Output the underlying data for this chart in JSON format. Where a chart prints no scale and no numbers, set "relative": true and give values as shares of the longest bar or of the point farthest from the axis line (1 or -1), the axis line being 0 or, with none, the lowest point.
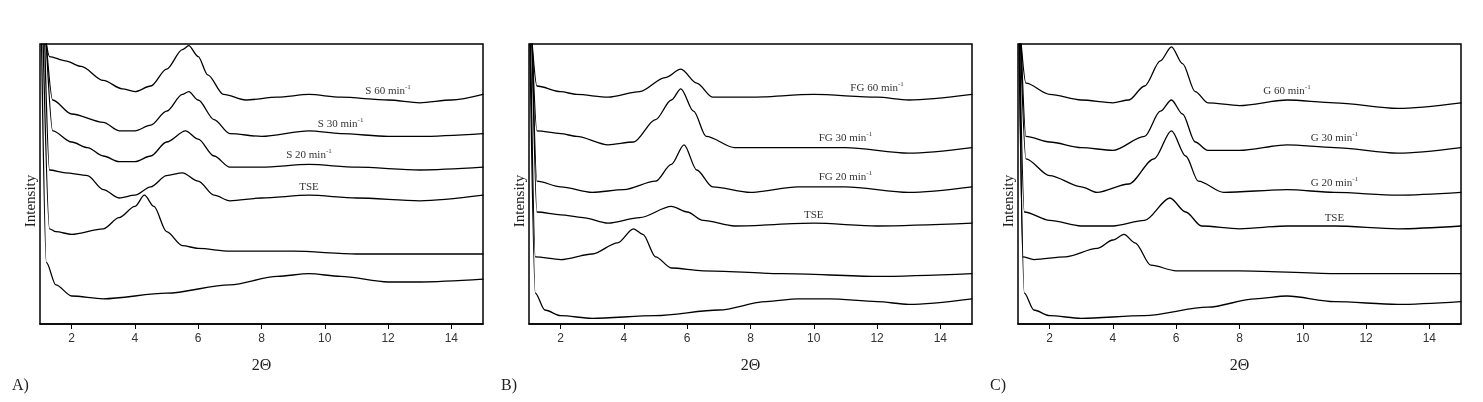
{
  "chart_data": [
    {
      "type": "line",
      "relative": true,
      "xlabel": "2Θ",
      "ylabel": "Intensity",
      "annotations": [
        "A)"
      ],
      "xlim": [
        1,
        15
      ],
      "xticks": [
        2,
        4,
        6,
        8,
        10,
        12,
        14
      ],
      "grid": false,
      "legend": false,
      "marker": "none",
      "line_style": "solid",
      "series": [
        {
          "name": "S 60 min$^{-1}$",
          "color": "#000000",
          "x": [
            1.2,
            1.3,
            1.8,
            2.3,
            3,
            3.6,
            4,
            4.5,
            5,
            5.5,
            5.7,
            6,
            6.3,
            6.8,
            7.5,
            8.5,
            9.5,
            10.5,
            12,
            13,
            14,
            15
          ],
          "values": [
            1.0,
            0.955,
            0.94,
            0.92,
            0.87,
            0.84,
            0.83,
            0.85,
            0.91,
            0.98,
            0.994,
            0.955,
            0.89,
            0.82,
            0.8,
            0.81,
            0.82,
            0.81,
            0.8,
            0.79,
            0.8,
            0.82
          ]
        },
        {
          "name": "S 30 min$^{-1}$",
          "color": "#000000",
          "x": [
            1.2,
            1.4,
            2,
            3,
            3.5,
            4,
            4.5,
            5,
            5.5,
            5.7,
            6,
            6.5,
            7,
            8,
            9.5,
            10.5,
            12,
            13,
            15
          ],
          "values": [
            1.0,
            0.8,
            0.75,
            0.72,
            0.69,
            0.69,
            0.71,
            0.76,
            0.82,
            0.83,
            0.8,
            0.73,
            0.68,
            0.67,
            0.69,
            0.68,
            0.67,
            0.67,
            0.68
          ]
        },
        {
          "name": "S 20 min$^{-1}$",
          "color": "#000000",
          "x": [
            1.2,
            1.4,
            2,
            2.5,
            3,
            3.5,
            4,
            4.5,
            5,
            5.6,
            6,
            6.5,
            7,
            8,
            9.5,
            11,
            13,
            15
          ],
          "values": [
            1.0,
            0.69,
            0.65,
            0.63,
            0.6,
            0.58,
            0.58,
            0.6,
            0.65,
            0.69,
            0.66,
            0.6,
            0.56,
            0.56,
            0.57,
            0.56,
            0.55,
            0.56
          ]
        },
        {
          "name": "TSE",
          "color": "#000000",
          "x": [
            1.15,
            1.3,
            1.8,
            2.5,
            3,
            3.5,
            4,
            4.5,
            5,
            5.5,
            6,
            6.5,
            7,
            8,
            9.5,
            11,
            13,
            15
          ],
          "values": [
            1.0,
            0.55,
            0.54,
            0.53,
            0.48,
            0.45,
            0.46,
            0.49,
            0.53,
            0.54,
            0.51,
            0.46,
            0.44,
            0.45,
            0.46,
            0.45,
            0.44,
            0.46
          ]
        },
        {
          "color": "#000000",
          "x": [
            1.1,
            1.3,
            1.5,
            2,
            3,
            3.5,
            4,
            4.3,
            4.6,
            5,
            5.5,
            6,
            7,
            9,
            11,
            15
          ],
          "values": [
            1.0,
            0.34,
            0.33,
            0.32,
            0.34,
            0.38,
            0.42,
            0.46,
            0.42,
            0.33,
            0.28,
            0.27,
            0.26,
            0.26,
            0.25,
            0.25
          ]
        },
        {
          "color": "#000000",
          "x": [
            1.05,
            1.2,
            1.5,
            2,
            3,
            5,
            7,
            8.5,
            9.5,
            10.5,
            12,
            13,
            15
          ],
          "values": [
            1.0,
            0.22,
            0.14,
            0.1,
            0.09,
            0.11,
            0.14,
            0.17,
            0.18,
            0.17,
            0.15,
            0.15,
            0.16
          ]
        }
      ]
    },
    {
      "type": "line",
      "relative": true,
      "xlabel": "2Θ",
      "ylabel": "Intensity",
      "annotations": [
        "B)"
      ],
      "xlim": [
        1,
        15
      ],
      "xticks": [
        2,
        4,
        6,
        8,
        10,
        12,
        14
      ],
      "grid": false,
      "legend": false,
      "marker": "none",
      "line_style": "solid",
      "series": [
        {
          "name": "FG 60 min$^{-1}$",
          "color": "#000000",
          "x": [
            1.1,
            1.25,
            2,
            2.5,
            3.5,
            4.5,
            5.3,
            5.8,
            6.3,
            6.8,
            8,
            10,
            12,
            13,
            15
          ],
          "values": [
            1.0,
            0.85,
            0.83,
            0.82,
            0.81,
            0.83,
            0.88,
            0.91,
            0.86,
            0.81,
            0.81,
            0.82,
            0.81,
            0.8,
            0.82
          ]
        },
        {
          "name": "FG 30 min$^{-1}$",
          "color": "#000000",
          "x": [
            1.1,
            1.25,
            2,
            2.5,
            3.5,
            4.3,
            5,
            5.5,
            5.8,
            6.2,
            6.6,
            7.5,
            9.5,
            11,
            13,
            15
          ],
          "values": [
            1.0,
            0.69,
            0.68,
            0.67,
            0.64,
            0.65,
            0.73,
            0.8,
            0.84,
            0.76,
            0.67,
            0.63,
            0.63,
            0.63,
            0.61,
            0.63
          ]
        },
        {
          "name": "FG 20 min$^{-1}$",
          "color": "#000000",
          "x": [
            1.1,
            1.25,
            2,
            3,
            4,
            5,
            5.5,
            5.9,
            6.3,
            6.8,
            8,
            9.5,
            11,
            13,
            15
          ],
          "values": [
            1.0,
            0.51,
            0.49,
            0.47,
            0.48,
            0.51,
            0.57,
            0.64,
            0.55,
            0.49,
            0.47,
            0.49,
            0.49,
            0.47,
            0.49
          ]
        },
        {
          "name": "TSE",
          "color": "#000000",
          "x": [
            1.1,
            1.25,
            2,
            2.7,
            3.5,
            4.5,
            5.5,
            6,
            6.5,
            7.5,
            10,
            12,
            15
          ],
          "values": [
            1.0,
            0.4,
            0.39,
            0.38,
            0.36,
            0.38,
            0.42,
            0.4,
            0.37,
            0.35,
            0.36,
            0.35,
            0.36
          ]
        },
        {
          "color": "#000000",
          "x": [
            1.05,
            1.2,
            2,
            3,
            3.8,
            4.3,
            4.6,
            5,
            5.5,
            6.5,
            9,
            12,
            15
          ],
          "values": [
            1.0,
            0.24,
            0.23,
            0.25,
            0.29,
            0.34,
            0.32,
            0.24,
            0.2,
            0.19,
            0.18,
            0.17,
            0.18
          ]
        },
        {
          "color": "#000000",
          "x": [
            1.03,
            1.2,
            1.5,
            2,
            3,
            5,
            7,
            8.5,
            9.5,
            10.5,
            12,
            13,
            15
          ],
          "values": [
            1.0,
            0.11,
            0.05,
            0.03,
            0.02,
            0.03,
            0.05,
            0.08,
            0.09,
            0.09,
            0.08,
            0.07,
            0.09
          ]
        }
      ]
    },
    {
      "type": "line",
      "relative": true,
      "xlabel": "2Θ",
      "ylabel": "Intensity",
      "annotations": [
        "C)"
      ],
      "xlim": [
        1,
        15
      ],
      "xticks": [
        2,
        4,
        6,
        8,
        10,
        12,
        14
      ],
      "grid": false,
      "legend": false,
      "marker": "none",
      "line_style": "solid",
      "series": [
        {
          "name": "G 60 min$^{-1}$",
          "color": "#000000",
          "x": [
            1.1,
            1.25,
            2,
            3,
            4,
            4.5,
            5,
            5.5,
            5.85,
            6.2,
            6.6,
            7,
            8,
            9.5,
            11,
            13,
            15
          ],
          "values": [
            1.0,
            0.86,
            0.82,
            0.8,
            0.79,
            0.8,
            0.85,
            0.94,
            0.99,
            0.93,
            0.83,
            0.79,
            0.78,
            0.8,
            0.79,
            0.77,
            0.79
          ]
        },
        {
          "name": "G 30 min$^{-1}$",
          "color": "#000000",
          "x": [
            1.1,
            1.25,
            2,
            3,
            4,
            5,
            5.5,
            5.85,
            6.2,
            6.6,
            7,
            8,
            9.5,
            11,
            13,
            15
          ],
          "values": [
            1.0,
            0.67,
            0.65,
            0.63,
            0.62,
            0.67,
            0.76,
            0.8,
            0.75,
            0.65,
            0.62,
            0.62,
            0.64,
            0.63,
            0.61,
            0.63
          ]
        },
        {
          "name": "G 20 min$^{-1}$",
          "color": "#000000",
          "x": [
            1.08,
            1.25,
            2,
            3,
            3.5,
            4.5,
            5.3,
            5.85,
            6.3,
            6.7,
            7.5,
            9.5,
            11,
            13,
            15
          ],
          "values": [
            1.0,
            0.59,
            0.53,
            0.49,
            0.47,
            0.5,
            0.59,
            0.69,
            0.6,
            0.51,
            0.47,
            0.48,
            0.47,
            0.46,
            0.47
          ]
        },
        {
          "name": "TSE",
          "color": "#000000",
          "x": [
            1.05,
            1.2,
            2,
            3,
            4,
            5,
            5.8,
            6.3,
            6.8,
            8,
            9.5,
            11,
            13,
            15
          ],
          "values": [
            1.0,
            0.4,
            0.37,
            0.35,
            0.35,
            0.37,
            0.45,
            0.4,
            0.35,
            0.34,
            0.35,
            0.35,
            0.34,
            0.35
          ]
        },
        {
          "color": "#000000",
          "x": [
            1.05,
            1.15,
            1.5,
            2.5,
            3.5,
            4,
            4.35,
            4.7,
            5.2,
            6,
            8,
            11,
            15
          ],
          "values": [
            1.0,
            0.24,
            0.23,
            0.24,
            0.27,
            0.3,
            0.32,
            0.29,
            0.21,
            0.19,
            0.19,
            0.18,
            0.18
          ]
        },
        {
          "color": "#000000",
          "x": [
            1.03,
            1.2,
            1.5,
            2,
            3,
            5,
            7,
            8.5,
            9.5,
            11,
            13,
            15
          ],
          "values": [
            1.0,
            0.11,
            0.05,
            0.03,
            0.02,
            0.03,
            0.06,
            0.09,
            0.1,
            0.08,
            0.07,
            0.08
          ]
        }
      ]
    }
  ]
}
